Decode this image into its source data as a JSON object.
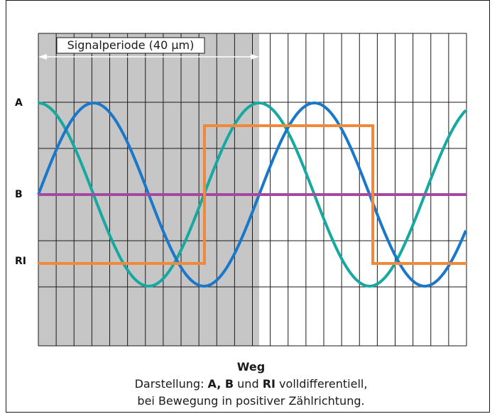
{
  "signal_period_label": "Signalperiode (40 µm)",
  "channel_labels": {
    "a": "A",
    "b": "B",
    "ri": "RI"
  },
  "axis_label": "Weg",
  "caption": {
    "line1_prefix": "Darstellung: ",
    "line1_bold1": "A, B",
    "line1_mid": " und ",
    "line1_bold2": "RI",
    "line1_suffix": " volldifferentiell,",
    "line2": "bei Bewegung in positiver Zählrichtung."
  },
  "colors": {
    "channel_a": "#17a9a1",
    "channel_b": "#1a77c9",
    "reference_line": "#a24aa0",
    "channel_ri": "#f08a3a",
    "shaded_period": "#c6c6c6",
    "grid": "#1a1a1a"
  }
}
